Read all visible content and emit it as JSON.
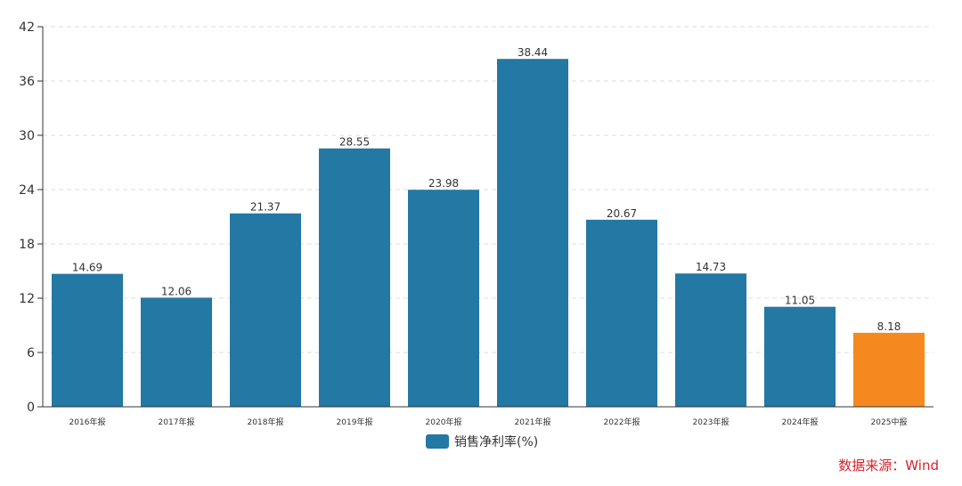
{
  "chart_data": {
    "type": "bar",
    "categories": [
      "2016年报",
      "2017年报",
      "2018年报",
      "2019年报",
      "2020年报",
      "2021年报",
      "2022年报",
      "2023年报",
      "2024年报",
      "2025中报"
    ],
    "series": [
      {
        "name": "销售净利率(%)",
        "values": [
          14.69,
          12.06,
          21.37,
          28.55,
          23.98,
          38.44,
          20.67,
          14.73,
          11.05,
          8.18
        ]
      }
    ],
    "value_labels": [
      "14.69",
      "12.06",
      "21.37",
      "28.55",
      "23.98",
      "38.44",
      "20.67",
      "14.73",
      "11.05",
      "8.18"
    ],
    "yticks": [
      "0",
      "6",
      "12",
      "18",
      "24",
      "30",
      "36",
      "42"
    ],
    "ylim": [
      0,
      42
    ],
    "grid": true,
    "legend_position": "bottom-center",
    "colors": {
      "primary": "#2378a4",
      "highlight": "#f5891f",
      "highlight_index": 9
    }
  },
  "legend": {
    "label": "销售净利率(%)"
  },
  "source": "数据来源：Wind"
}
